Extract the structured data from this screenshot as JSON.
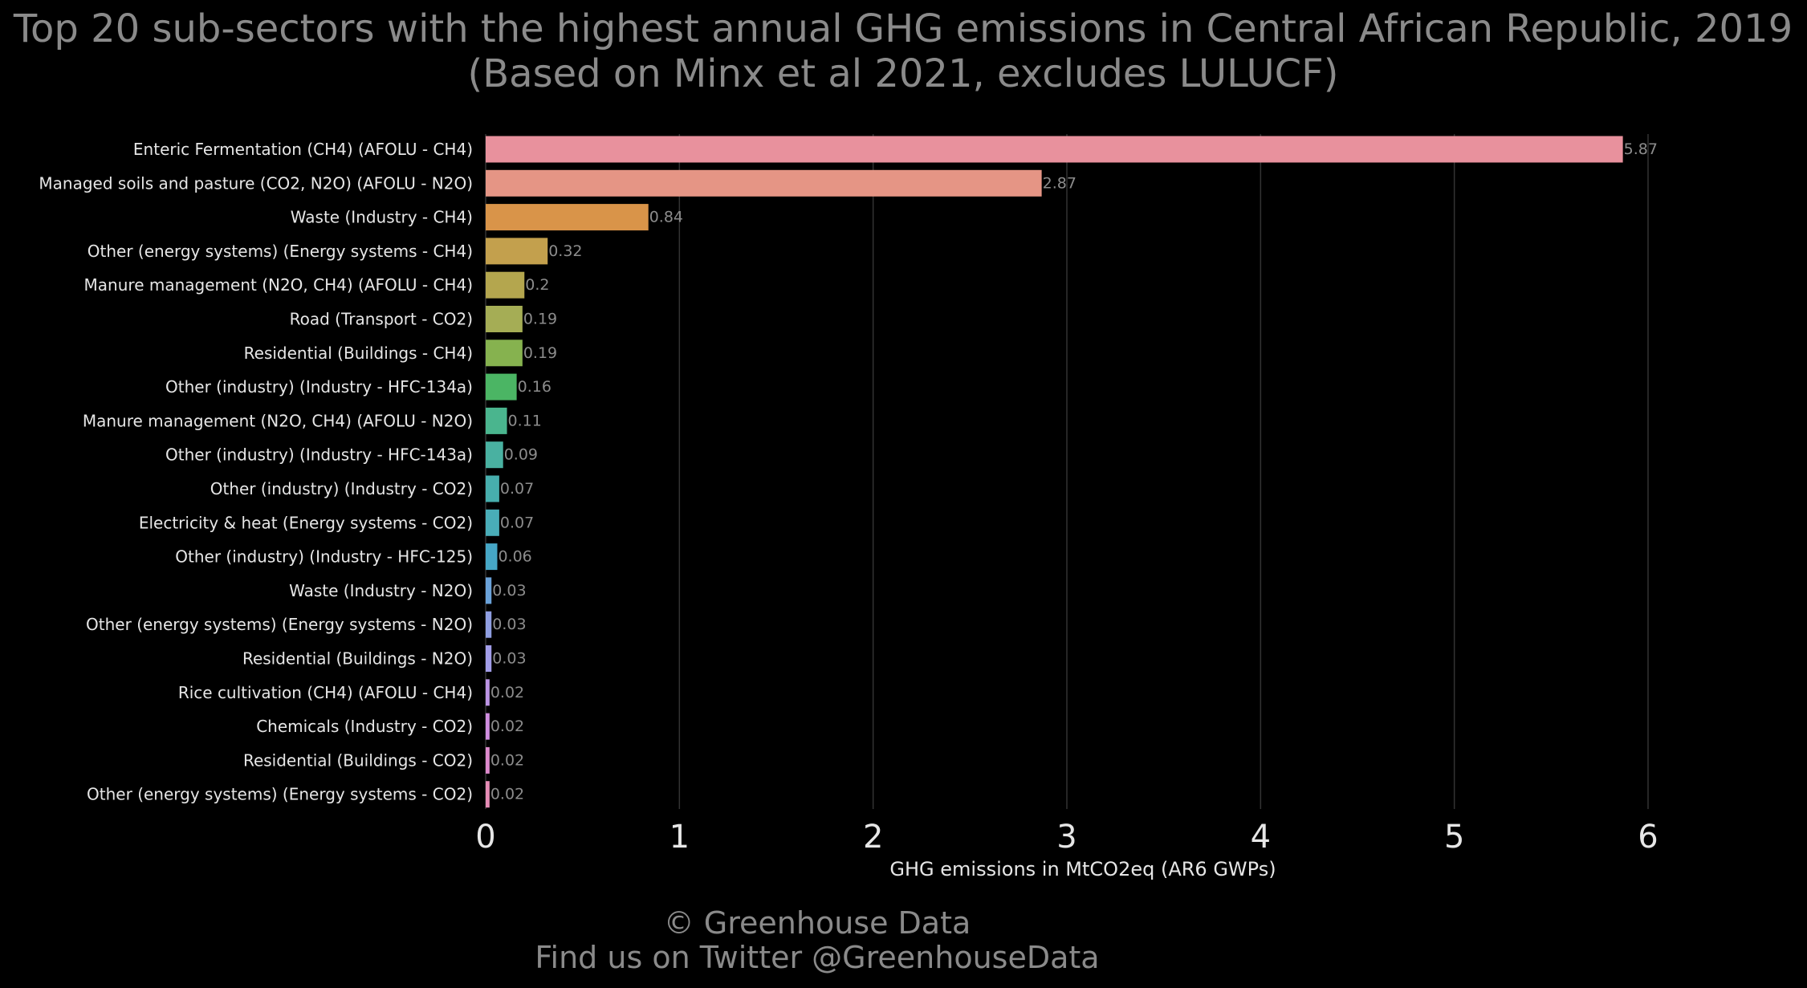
{
  "chart_data": {
    "type": "bar",
    "orientation": "horizontal",
    "title": "Top 20 sub-sectors with the highest annual GHG emissions in Central African Republic, 2019",
    "subtitle": "(Based on Minx et al 2021, excludes LULUCF)",
    "xlabel": "GHG emissions in MtCO2eq (AR6 GWPs)",
    "ylabel": "",
    "xlim": [
      0,
      6
    ],
    "xticks": [
      0,
      1,
      2,
      3,
      4,
      5,
      6
    ],
    "grid": "vertical",
    "legend": "none",
    "categories": [
      "Enteric Fermentation (CH4) (AFOLU - CH4)",
      "Managed soils and pasture (CO2, N2O) (AFOLU - N2O)",
      "Waste (Industry - CH4)",
      "Other (energy systems) (Energy systems - CH4)",
      "Manure management (N2O, CH4) (AFOLU - CH4)",
      "Road (Transport - CO2)",
      "Residential (Buildings - CH4)",
      "Other (industry) (Industry - HFC-134a)",
      "Manure management (N2O, CH4) (AFOLU - N2O)",
      "Other (industry) (Industry - HFC-143a)",
      "Other (industry) (Industry - CO2)",
      "Electricity & heat (Energy systems - CO2)",
      "Other (industry) (Industry - HFC-125)",
      "Waste (Industry - N2O)",
      "Other (energy systems) (Energy systems - N2O)",
      "Residential (Buildings - N2O)",
      "Rice cultivation (CH4) (AFOLU - CH4)",
      "Chemicals (Industry - CO2)",
      "Residential (Buildings - CO2)",
      "Other (energy systems) (Energy systems - CO2)"
    ],
    "values": [
      5.87,
      2.87,
      0.84,
      0.32,
      0.2,
      0.19,
      0.19,
      0.16,
      0.11,
      0.09,
      0.07,
      0.07,
      0.06,
      0.03,
      0.03,
      0.03,
      0.02,
      0.02,
      0.02,
      0.02
    ],
    "value_labels": [
      "5.87",
      "2.87",
      "0.84",
      "0.32",
      "0.2",
      "0.19",
      "0.19",
      "0.16",
      "0.11",
      "0.09",
      "0.07",
      "0.07",
      "0.06",
      "0.03",
      "0.03",
      "0.03",
      "0.02",
      "0.02",
      "0.02",
      "0.02"
    ],
    "colors": [
      "#e8919d",
      "#e59585",
      "#d99449",
      "#c3a04d",
      "#b4a64e",
      "#a5ad55",
      "#86b24f",
      "#4bb564",
      "#4ab58e",
      "#49b1a1",
      "#47aead",
      "#49adb8",
      "#46a7c6",
      "#6aa2d9",
      "#8f9ee1",
      "#a29de8",
      "#bb93e3",
      "#cf8ddf",
      "#dd8acc",
      "#e68cb5"
    ]
  },
  "credits": {
    "line1": "© Greenhouse Data",
    "line2": "Find us on Twitter @GreenhouseData"
  }
}
